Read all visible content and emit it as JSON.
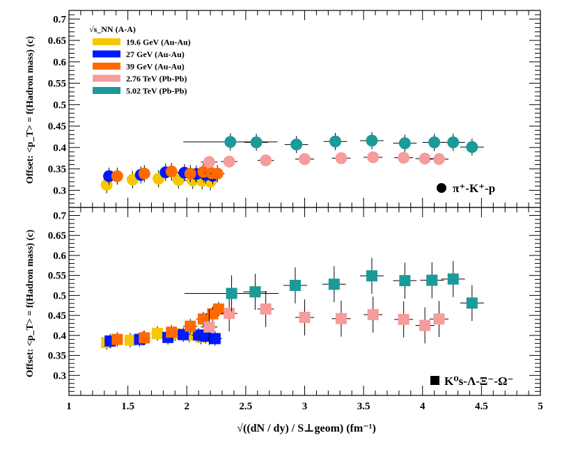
{
  "colors": {
    "19.6 GeV": "#f6c800",
    "27 GeV": "#0018ff",
    "39 GeV": "#ff6a00",
    "2.76 TeV": "#f59c9c",
    "5.02 TeV": "#1a9a98"
  },
  "chart_data": [
    {
      "type": "scatter",
      "panel": "top",
      "marker": "circle",
      "ylabel": "Offset: <p_T> = f(Hadron mass) (c)",
      "xlim": [
        1,
        5
      ],
      "ylim": [
        0.26,
        0.72
      ],
      "yticks": [
        "0.3",
        "0.35",
        "0.4",
        "0.45",
        "0.5",
        "0.55",
        "0.6",
        "0.65",
        "0.7"
      ],
      "species_text": "π⁺-K⁺-p",
      "legend": {
        "header": "√s_NN (A-A)",
        "entries": [
          {
            "key": "19.6 GeV",
            "label": "19.6 GeV (Au-Au)"
          },
          {
            "key": "27 GeV",
            "label": "27 GeV (Au-Au)"
          },
          {
            "key": "39 GeV",
            "label": "39 GeV (Au-Au)"
          },
          {
            "key": "2.76 TeV",
            "label": "2.76 TeV (Pb-Pb)"
          },
          {
            "key": "5.02 TeV",
            "label": "5.02 TeV (Pb-Pb)"
          }
        ]
      },
      "series": [
        {
          "name": "19.6 GeV",
          "points": [
            {
              "x": 1.32,
              "y": 0.313,
              "ex": 0.04,
              "ey": 0.02
            },
            {
              "x": 1.54,
              "y": 0.325,
              "ex": 0.05,
              "ey": 0.02
            },
            {
              "x": 1.76,
              "y": 0.327,
              "ex": 0.05,
              "ey": 0.02
            },
            {
              "x": 1.93,
              "y": 0.324,
              "ex": 0.06,
              "ey": 0.02
            },
            {
              "x": 2.05,
              "y": 0.323,
              "ex": 0.06,
              "ey": 0.02
            },
            {
              "x": 2.13,
              "y": 0.322,
              "ex": 0.06,
              "ey": 0.02
            },
            {
              "x": 2.2,
              "y": 0.32,
              "ex": 0.06,
              "ey": 0.02
            }
          ]
        },
        {
          "name": "27 GeV",
          "points": [
            {
              "x": 1.34,
              "y": 0.333,
              "ex": 0.04,
              "ey": 0.02
            },
            {
              "x": 1.61,
              "y": 0.336,
              "ex": 0.05,
              "ey": 0.02
            },
            {
              "x": 1.82,
              "y": 0.342,
              "ex": 0.05,
              "ey": 0.02
            },
            {
              "x": 1.98,
              "y": 0.341,
              "ex": 0.06,
              "ey": 0.02
            },
            {
              "x": 2.08,
              "y": 0.338,
              "ex": 0.06,
              "ey": 0.02
            },
            {
              "x": 2.16,
              "y": 0.336,
              "ex": 0.06,
              "ey": 0.02
            },
            {
              "x": 2.22,
              "y": 0.334,
              "ex": 0.06,
              "ey": 0.02
            }
          ]
        },
        {
          "name": "39 GeV",
          "points": [
            {
              "x": 1.41,
              "y": 0.333,
              "ex": 0.04,
              "ey": 0.02
            },
            {
              "x": 1.64,
              "y": 0.339,
              "ex": 0.05,
              "ey": 0.02
            },
            {
              "x": 1.87,
              "y": 0.344,
              "ex": 0.05,
              "ey": 0.02
            },
            {
              "x": 2.03,
              "y": 0.339,
              "ex": 0.06,
              "ey": 0.02
            },
            {
              "x": 2.14,
              "y": 0.343,
              "ex": 0.06,
              "ey": 0.02
            },
            {
              "x": 2.21,
              "y": 0.34,
              "ex": 0.06,
              "ey": 0.02
            },
            {
              "x": 2.26,
              "y": 0.339,
              "ex": 0.06,
              "ey": 0.02
            }
          ]
        },
        {
          "name": "2.76 TeV",
          "points": [
            {
              "x": 2.19,
              "y": 0.366,
              "ex": 0.07,
              "ey": 0.012
            },
            {
              "x": 2.36,
              "y": 0.367,
              "ex": 0.07,
              "ey": 0.012
            },
            {
              "x": 2.67,
              "y": 0.37,
              "ex": 0.07,
              "ey": 0.012
            },
            {
              "x": 3.0,
              "y": 0.373,
              "ex": 0.08,
              "ey": 0.012
            },
            {
              "x": 3.31,
              "y": 0.375,
              "ex": 0.08,
              "ey": 0.012
            },
            {
              "x": 3.58,
              "y": 0.377,
              "ex": 0.08,
              "ey": 0.012
            },
            {
              "x": 3.84,
              "y": 0.376,
              "ex": 0.08,
              "ey": 0.012
            },
            {
              "x": 4.02,
              "y": 0.374,
              "ex": 0.08,
              "ey": 0.012
            },
            {
              "x": 4.14,
              "y": 0.373,
              "ex": 0.08,
              "ey": 0.012
            }
          ]
        },
        {
          "name": "5.02 TeV",
          "points": [
            {
              "x": 2.37,
              "y": 0.413,
              "ex": 0.4,
              "ey": 0.02
            },
            {
              "x": 2.59,
              "y": 0.412,
              "ex": 0.1,
              "ey": 0.02
            },
            {
              "x": 2.93,
              "y": 0.407,
              "ex": 0.1,
              "ey": 0.02
            },
            {
              "x": 3.26,
              "y": 0.414,
              "ex": 0.1,
              "ey": 0.02
            },
            {
              "x": 3.57,
              "y": 0.416,
              "ex": 0.1,
              "ey": 0.02
            },
            {
              "x": 3.85,
              "y": 0.41,
              "ex": 0.1,
              "ey": 0.02
            },
            {
              "x": 4.1,
              "y": 0.412,
              "ex": 0.1,
              "ey": 0.02
            },
            {
              "x": 4.26,
              "y": 0.412,
              "ex": 0.1,
              "ey": 0.02
            },
            {
              "x": 4.42,
              "y": 0.401,
              "ex": 0.1,
              "ey": 0.02
            }
          ]
        }
      ]
    },
    {
      "type": "scatter",
      "panel": "bottom",
      "marker": "square",
      "ylabel": "Offset: <p_T> = f(Hadron mass) (c)",
      "xlabel": "√((dN / dy) / S⊥geom) (fm⁻¹)",
      "xlim": [
        1,
        5
      ],
      "ylim": [
        0.25,
        0.72
      ],
      "xticks": [
        "1",
        "1.5",
        "2",
        "2.5",
        "3",
        "3.5",
        "4",
        "4.5",
        "5"
      ],
      "yticks": [
        "0.3",
        "0.35",
        "0.4",
        "0.45",
        "0.5",
        "0.55",
        "0.6",
        "0.65",
        "0.7"
      ],
      "species_text": "K⁰s-Λ-Ξ⁻-Ω⁻",
      "series": [
        {
          "name": "19.6 GeV",
          "points": [
            {
              "x": 1.32,
              "y": 0.382,
              "ex": 0.04,
              "ey": 0.018
            },
            {
              "x": 1.52,
              "y": 0.388,
              "ex": 0.05,
              "ey": 0.018
            },
            {
              "x": 1.63,
              "y": 0.393,
              "ex": 0.05,
              "ey": 0.018
            },
            {
              "x": 1.75,
              "y": 0.405,
              "ex": 0.05,
              "ey": 0.018
            },
            {
              "x": 1.9,
              "y": 0.404,
              "ex": 0.06,
              "ey": 0.018
            },
            {
              "x": 2.02,
              "y": 0.401,
              "ex": 0.06,
              "ey": 0.018
            },
            {
              "x": 2.12,
              "y": 0.396,
              "ex": 0.06,
              "ey": 0.018
            }
          ]
        },
        {
          "name": "27 GeV",
          "points": [
            {
              "x": 1.35,
              "y": 0.386,
              "ex": 0.04,
              "ey": 0.018
            },
            {
              "x": 1.6,
              "y": 0.39,
              "ex": 0.05,
              "ey": 0.018
            },
            {
              "x": 1.84,
              "y": 0.395,
              "ex": 0.05,
              "ey": 0.018
            },
            {
              "x": 1.97,
              "y": 0.402,
              "ex": 0.06,
              "ey": 0.018
            },
            {
              "x": 2.1,
              "y": 0.401,
              "ex": 0.06,
              "ey": 0.018
            },
            {
              "x": 2.16,
              "y": 0.398,
              "ex": 0.06,
              "ey": 0.018
            },
            {
              "x": 2.24,
              "y": 0.392,
              "ex": 0.06,
              "ey": 0.018
            }
          ]
        },
        {
          "name": "39 GeV",
          "points": [
            {
              "x": 1.41,
              "y": 0.39,
              "ex": 0.04,
              "ey": 0.018
            },
            {
              "x": 1.64,
              "y": 0.394,
              "ex": 0.05,
              "ey": 0.018
            },
            {
              "x": 1.87,
              "y": 0.408,
              "ex": 0.05,
              "ey": 0.018
            },
            {
              "x": 2.03,
              "y": 0.423,
              "ex": 0.06,
              "ey": 0.018
            },
            {
              "x": 2.14,
              "y": 0.441,
              "ex": 0.06,
              "ey": 0.018
            },
            {
              "x": 2.22,
              "y": 0.454,
              "ex": 0.06,
              "ey": 0.018
            },
            {
              "x": 2.27,
              "y": 0.466,
              "ex": 0.06,
              "ey": 0.018
            }
          ]
        },
        {
          "name": "2.76 TeV",
          "points": [
            {
              "x": 2.19,
              "y": 0.421,
              "ex": 0.07,
              "ey": 0.045
            },
            {
              "x": 2.36,
              "y": 0.455,
              "ex": 0.07,
              "ey": 0.045
            },
            {
              "x": 2.67,
              "y": 0.466,
              "ex": 0.07,
              "ey": 0.045
            },
            {
              "x": 3.0,
              "y": 0.445,
              "ex": 0.08,
              "ey": 0.045
            },
            {
              "x": 3.31,
              "y": 0.442,
              "ex": 0.08,
              "ey": 0.045
            },
            {
              "x": 3.58,
              "y": 0.452,
              "ex": 0.08,
              "ey": 0.045
            },
            {
              "x": 3.84,
              "y": 0.44,
              "ex": 0.08,
              "ey": 0.045
            },
            {
              "x": 4.02,
              "y": 0.425,
              "ex": 0.08,
              "ey": 0.045
            },
            {
              "x": 4.14,
              "y": 0.441,
              "ex": 0.08,
              "ey": 0.045
            }
          ]
        },
        {
          "name": "5.02 TeV",
          "points": [
            {
              "x": 2.38,
              "y": 0.505,
              "ex": 0.4,
              "ey": 0.045
            },
            {
              "x": 2.58,
              "y": 0.509,
              "ex": 0.1,
              "ey": 0.045
            },
            {
              "x": 2.92,
              "y": 0.525,
              "ex": 0.1,
              "ey": 0.045
            },
            {
              "x": 3.25,
              "y": 0.528,
              "ex": 0.1,
              "ey": 0.045
            },
            {
              "x": 3.57,
              "y": 0.549,
              "ex": 0.1,
              "ey": 0.045
            },
            {
              "x": 3.85,
              "y": 0.537,
              "ex": 0.1,
              "ey": 0.045
            },
            {
              "x": 4.08,
              "y": 0.538,
              "ex": 0.1,
              "ey": 0.045
            },
            {
              "x": 4.26,
              "y": 0.541,
              "ex": 0.1,
              "ey": 0.045
            },
            {
              "x": 4.42,
              "y": 0.481,
              "ex": 0.1,
              "ey": 0.045
            }
          ]
        }
      ]
    }
  ]
}
